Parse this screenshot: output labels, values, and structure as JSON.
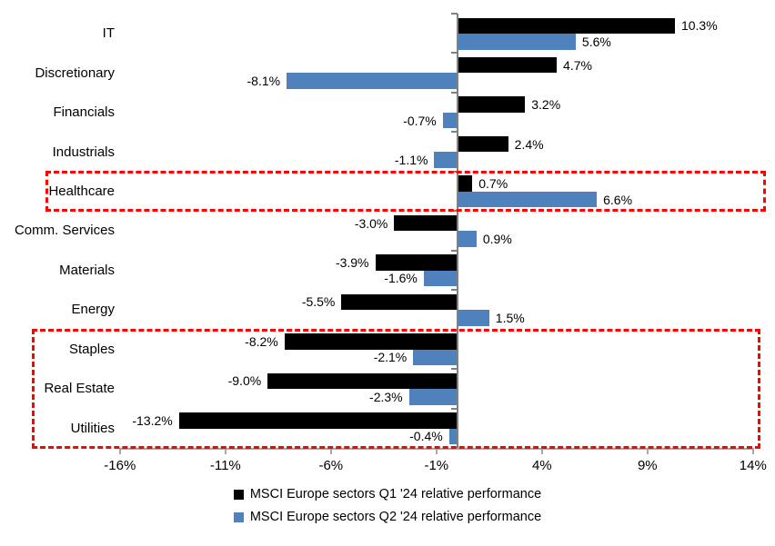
{
  "chart_data": {
    "type": "bar",
    "orientation": "horizontal",
    "categories": [
      "IT",
      "Discretionary",
      "Financials",
      "Industrials",
      "Healthcare",
      "Comm. Services",
      "Materials",
      "Energy",
      "Staples",
      "Real Estate",
      "Utilities"
    ],
    "series": [
      {
        "name": "MSCI Europe sectors Q1 '24 relative performance",
        "color": "#000000",
        "values": [
          10.3,
          4.7,
          3.2,
          2.4,
          0.7,
          -3.0,
          -3.9,
          -5.5,
          -8.2,
          -9.0,
          -13.2
        ]
      },
      {
        "name": "MSCI Europe sectors Q2 '24 relative performance",
        "color": "#4f81bd",
        "values": [
          5.6,
          -8.1,
          -0.7,
          -1.1,
          6.6,
          0.9,
          -1.6,
          1.5,
          -2.1,
          -2.3,
          -0.4
        ]
      }
    ],
    "x_tick_labels": [
      "-16%",
      "-11%",
      "-6%",
      "-1%",
      "4%",
      "9%",
      "14%"
    ],
    "x_tick_values": [
      -16,
      -11,
      -6,
      -1,
      4,
      9,
      14
    ],
    "xlim": [
      -16,
      14
    ],
    "value_label_suffix": "%",
    "grid": "off",
    "legend_position": "bottom",
    "highlight_boxes": [
      {
        "categories": [
          "Healthcare"
        ],
        "color": "#ff0000"
      },
      {
        "categories": [
          "Staples",
          "Real Estate",
          "Utilities"
        ],
        "color": "#ff0000"
      }
    ],
    "title": "",
    "xlabel": "",
    "ylabel": ""
  },
  "legend": {
    "q1_label": "MSCI Europe sectors Q1 '24 relative performance",
    "q2_label": "MSCI Europe sectors Q2 '24 relative performance"
  }
}
